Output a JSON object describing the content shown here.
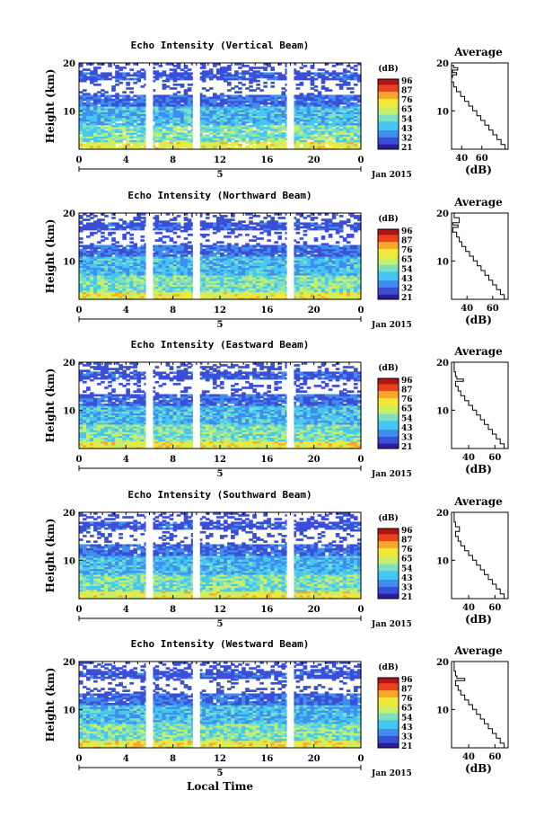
{
  "figure": {
    "xlabel": "Local Time",
    "ylabel": "Height (km)",
    "date_label": "Jan 2015",
    "day_label": "5",
    "xticks": [
      "0",
      "4",
      "8",
      "12",
      "16",
      "20",
      "0"
    ],
    "yticks": [
      "20",
      "10"
    ],
    "colorbar_unit": "(dB)",
    "profile_title": "Average",
    "profile_xlabel": "(dB)",
    "colormap": [
      "#2a1e9a",
      "#3a4fd6",
      "#3f8ef0",
      "#45c7f2",
      "#7fe0c0",
      "#c6ef6a",
      "#f2e839",
      "#f7a72a",
      "#e8421f",
      "#b01414"
    ]
  },
  "chart_data": [
    {
      "type": "heatmap",
      "title": "Echo Intensity (Vertical Beam)",
      "colorbar_ticks": [
        "96",
        "87",
        "76",
        "65",
        "54",
        "43",
        "32",
        "21"
      ],
      "profile_xticks": [
        "40",
        "60"
      ],
      "x": "local time (h), day 5 Jan 2015",
      "xlim": [
        0,
        24
      ],
      "ylim": [
        2,
        20
      ],
      "gaps": [
        [
          5.7,
          6.3
        ],
        [
          9.7,
          10.3
        ],
        [
          17.7,
          18.3
        ]
      ],
      "average_profile": {
        "x": [
          86,
          83,
          79,
          75,
          71,
          67,
          63,
          59,
          55,
          51,
          47,
          43,
          39,
          35,
          32,
          30,
          31,
          35,
          31,
          36,
          32,
          30
        ],
        "y": [
          2,
          3,
          4,
          5,
          6,
          7,
          8,
          9,
          10,
          11,
          12,
          13,
          14,
          15,
          16,
          17,
          17.5,
          18,
          18.5,
          19,
          19.5,
          20
        ],
        "xlim": [
          30,
          86
        ]
      }
    },
    {
      "type": "heatmap",
      "title": "Echo Intensity (Northward Beam)",
      "colorbar_ticks": [
        "96",
        "87",
        "76",
        "65",
        "54",
        "43",
        "32",
        "21"
      ],
      "profile_xticks": [
        "40",
        "60"
      ],
      "x": "local time (h), day 5 Jan 2015",
      "xlim": [
        0,
        24
      ],
      "ylim": [
        2,
        20
      ],
      "gaps": [
        [
          5.7,
          6.3
        ],
        [
          9.7,
          10.3
        ],
        [
          17.7,
          18.3
        ]
      ],
      "average_profile": {
        "x": [
          72,
          69,
          66,
          63,
          60,
          57,
          54,
          51,
          48,
          45,
          42,
          39,
          36,
          34,
          32,
          29,
          33,
          29,
          34,
          30
        ],
        "y": [
          2,
          3,
          4,
          5,
          6,
          7,
          8,
          9,
          10,
          11,
          12,
          13,
          14,
          15,
          16,
          17,
          17.5,
          18,
          19,
          20
        ],
        "xlim": [
          28,
          72
        ]
      }
    },
    {
      "type": "heatmap",
      "title": "Echo Intensity (Eastward Beam)",
      "colorbar_ticks": [
        "96",
        "87",
        "76",
        "65",
        "54",
        "43",
        "33",
        "21"
      ],
      "profile_xticks": [
        "40",
        "60"
      ],
      "x": "local time (h), day 5 Jan 2015",
      "xlim": [
        0,
        24
      ],
      "ylim": [
        2,
        20
      ],
      "gaps": [
        [
          5.7,
          6.3
        ],
        [
          9.7,
          10.3
        ],
        [
          17.7,
          18.3
        ]
      ],
      "average_profile": {
        "x": [
          70,
          67,
          64,
          61,
          58,
          55,
          52,
          49,
          46,
          43,
          40,
          37,
          34,
          32,
          30,
          36,
          31,
          30,
          29
        ],
        "y": [
          2,
          3,
          4,
          5,
          6,
          7,
          8,
          9,
          10,
          11,
          12,
          13,
          14,
          15,
          16,
          16.5,
          17,
          18,
          20
        ],
        "xlim": [
          27,
          70
        ]
      }
    },
    {
      "type": "heatmap",
      "title": "Echo Intensity (Southward Beam)",
      "colorbar_ticks": [
        "96",
        "87",
        "76",
        "65",
        "54",
        "43",
        "33",
        "21"
      ],
      "profile_xticks": [
        "40",
        "60"
      ],
      "x": "local time (h), day 5 Jan 2015",
      "xlim": [
        0,
        24
      ],
      "ylim": [
        2,
        20
      ],
      "gaps": [
        [
          5.7,
          6.3
        ],
        [
          9.7,
          10.3
        ],
        [
          17.7,
          18.3
        ]
      ],
      "average_profile": {
        "x": [
          70,
          67,
          64,
          61,
          58,
          55,
          52,
          49,
          46,
          43,
          40,
          37,
          34,
          32,
          30,
          33,
          30,
          29
        ],
        "y": [
          2,
          3,
          4,
          5,
          6,
          7,
          8,
          9,
          10,
          11,
          12,
          13,
          14,
          15,
          16,
          17,
          18,
          20
        ],
        "xlim": [
          27,
          70
        ]
      }
    },
    {
      "type": "heatmap",
      "title": "Echo Intensity (Westward Beam)",
      "colorbar_ticks": [
        "96",
        "87",
        "76",
        "65",
        "54",
        "43",
        "33",
        "21"
      ],
      "profile_xticks": [
        "40",
        "60"
      ],
      "x": "local time (h), day 5 Jan 2015",
      "xlim": [
        0,
        24
      ],
      "ylim": [
        2,
        20
      ],
      "gaps": [
        [
          5.7,
          6.3
        ],
        [
          9.7,
          10.3
        ],
        [
          17.7,
          18.3
        ]
      ],
      "average_profile": {
        "x": [
          70,
          67,
          64,
          61,
          58,
          55,
          52,
          49,
          46,
          43,
          40,
          37,
          34,
          32,
          30,
          37,
          31,
          30,
          29
        ],
        "y": [
          2,
          3,
          4,
          5,
          6,
          7,
          8,
          9,
          10,
          11,
          12,
          13,
          14,
          15,
          16,
          16.5,
          17,
          18,
          20
        ],
        "xlim": [
          27,
          70
        ]
      }
    }
  ]
}
